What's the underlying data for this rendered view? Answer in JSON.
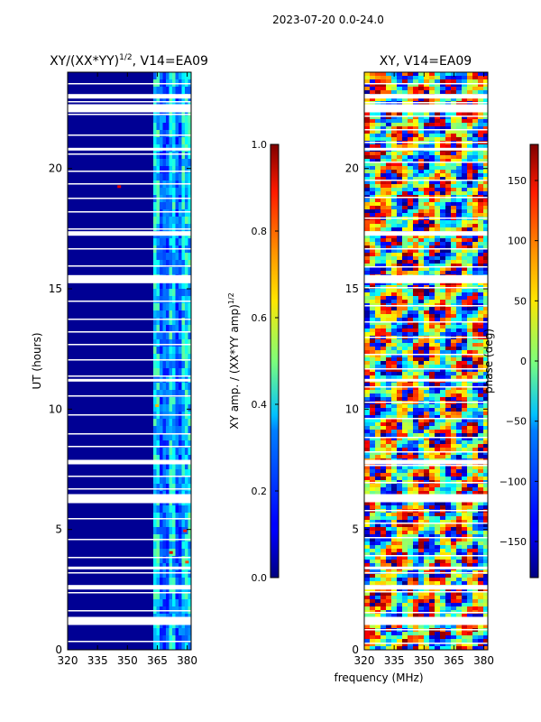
{
  "page_title": "2023-07-20 0.0-24.0",
  "chart_data": [
    {
      "type": "heatmap",
      "title": "XY/(XX*YY)",
      "title_exponent": "1/2",
      "title_suffix": ", V14=EA09",
      "xlabel": "",
      "ylabel": "UT (hours)",
      "xlim": [
        320,
        382
      ],
      "ylim": [
        0,
        24
      ],
      "x_ticks": [
        320,
        335,
        350,
        365,
        380
      ],
      "y_ticks": [
        0,
        5,
        10,
        15,
        20
      ],
      "colorbar": {
        "label": "XY amp. / (XX*YY amp)",
        "label_exponent": "1/2",
        "range": [
          0.0,
          1.0
        ],
        "ticks": [
          "0.0",
          "0.2",
          "0.4",
          "0.6",
          "0.8",
          "1.0"
        ],
        "tick_values": [
          0.0,
          0.2,
          0.4,
          0.6,
          0.8,
          1.0
        ],
        "colormap": "jet"
      },
      "description_values": {
        "background_level": 0.02,
        "band_363_380_level": 0.35,
        "flagged_hours": [
          1.2,
          2.6,
          3.4,
          6.3,
          7.8,
          11.2,
          15.4,
          17.3,
          20.8,
          22.5,
          23.0
        ]
      }
    },
    {
      "type": "heatmap",
      "title": "XY, V14=EA09",
      "xlabel": "frequency (MHz)",
      "ylabel": "",
      "xlim": [
        320,
        382
      ],
      "ylim": [
        0,
        24
      ],
      "x_ticks": [
        320,
        335,
        350,
        365,
        380
      ],
      "y_ticks": [
        0,
        5,
        10,
        15,
        20
      ],
      "colorbar": {
        "label": "phase (deg)",
        "range": [
          -180,
          180
        ],
        "ticks": [
          "−150",
          "−100",
          "−50",
          "0",
          "50",
          "100",
          "150"
        ],
        "tick_values": [
          -150,
          -100,
          -50,
          0,
          50,
          100,
          150
        ],
        "colormap": "jet"
      },
      "description_values": {
        "phase_range_deg": [
          -180,
          180
        ],
        "flagged_hours": [
          1.2,
          2.6,
          3.4,
          6.3,
          7.8,
          11.2,
          15.4,
          17.3,
          20.8,
          22.5,
          23.0
        ]
      }
    }
  ]
}
